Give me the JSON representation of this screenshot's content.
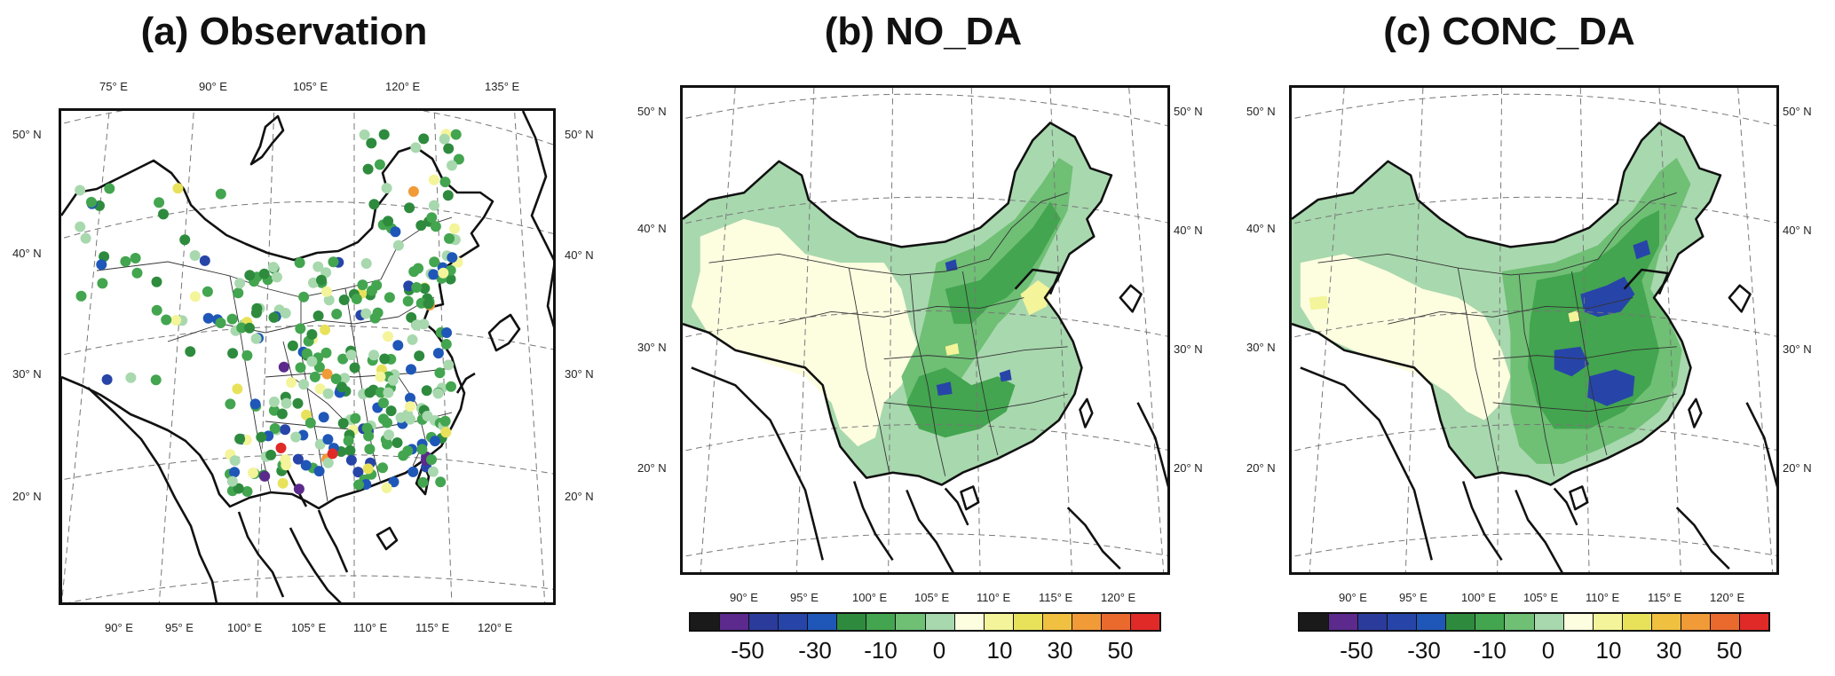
{
  "panels": [
    {
      "title": "(a) Observation",
      "top_lon_labels": [
        "75° E",
        "90° E",
        "105° E",
        "120° E",
        "135° E"
      ],
      "bottom_lon_labels": [
        "90° E",
        "95° E",
        "100° E",
        "105° E",
        "110° E",
        "115° E",
        "120° E"
      ],
      "left_lat_labels": [
        "50° N",
        "40° N",
        "30° N",
        "20° N"
      ],
      "right_lat_labels": [
        "50° N",
        "40° N",
        "30° N",
        "20° N"
      ]
    },
    {
      "title": "(b) NO_DA",
      "bottom_lon_labels": [
        "90° E",
        "95° E",
        "100° E",
        "105° E",
        "110° E",
        "115° E",
        "120° E"
      ],
      "left_lat_labels": [
        "50° N",
        "40° N",
        "30° N",
        "20° N"
      ],
      "right_lat_labels": [
        "50° N",
        "40° N",
        "30° N",
        "20° N"
      ]
    },
    {
      "title": "(c) CONC_DA",
      "bottom_lon_labels": [
        "90° E",
        "95° E",
        "100° E",
        "105° E",
        "110° E",
        "115° E",
        "120° E"
      ],
      "left_lat_labels": [
        "50° N",
        "40° N",
        "30° N",
        "20° N"
      ],
      "right_lat_labels": [
        "50° N",
        "40° N",
        "30° N",
        "20° N"
      ]
    }
  ],
  "colorbar": {
    "colors": [
      "#1a1a1a",
      "#5b2a8c",
      "#2b3b9c",
      "#2745a8",
      "#1f57b8",
      "#2e8b3e",
      "#43a54f",
      "#6fbf75",
      "#a8d8ae",
      "#fdfde0",
      "#f4f49a",
      "#e8e25a",
      "#f0c040",
      "#f19a38",
      "#ea6a2e",
      "#e02a28"
    ],
    "labels": [
      "-50",
      "-30",
      "-10",
      "0",
      "10",
      "30",
      "50"
    ]
  }
}
